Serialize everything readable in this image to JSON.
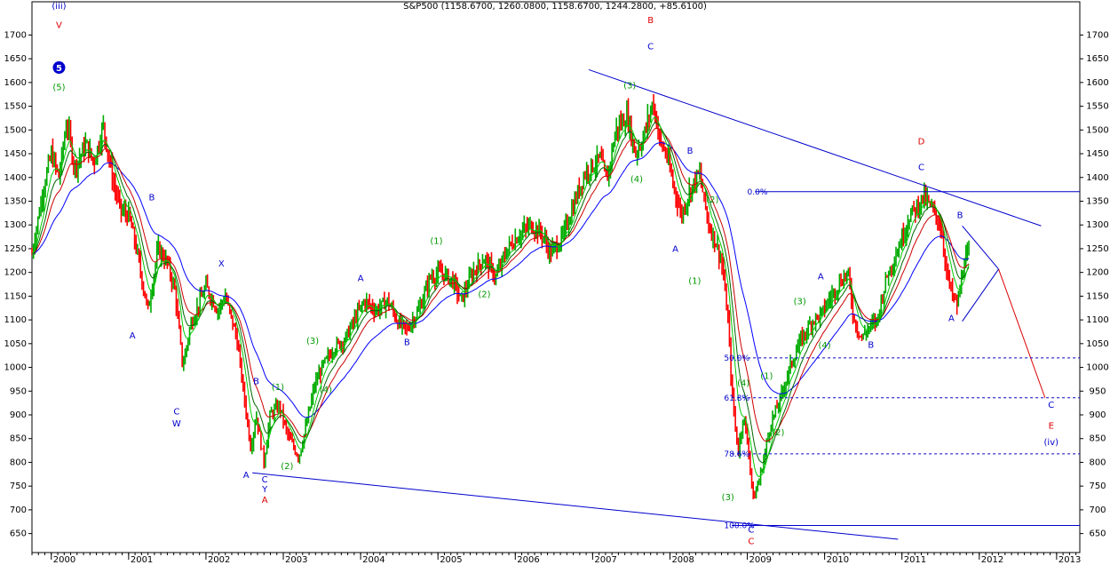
{
  "chart_data": {
    "type": "candlestick",
    "title": "S&P500 (1158.6700, 1260.0800, 1158.6700, 1244.2800, +85.6100)",
    "ylim": [
      610,
      1770
    ],
    "xlim": [
      1999.75,
      2013.3
    ],
    "y_ticks": [
      650,
      700,
      750,
      800,
      850,
      900,
      950,
      1000,
      1050,
      1100,
      1150,
      1200,
      1250,
      1300,
      1350,
      1400,
      1450,
      1500,
      1550,
      1600,
      1650,
      1700
    ],
    "x_ticks": [
      {
        "x": 2000,
        "label": "2000"
      },
      {
        "x": 2001,
        "label": "2001"
      },
      {
        "x": 2002,
        "label": "2002"
      },
      {
        "x": 2003,
        "label": "2003"
      },
      {
        "x": 2004,
        "label": "2004"
      },
      {
        "x": 2005,
        "label": "2005"
      },
      {
        "x": 2006,
        "label": "2006"
      },
      {
        "x": 2007,
        "label": "2007"
      },
      {
        "x": 2008,
        "label": "2008"
      },
      {
        "x": 2009,
        "label": "2009"
      },
      {
        "x": 2010,
        "label": "2010"
      },
      {
        "x": 2011,
        "label": "2011"
      },
      {
        "x": 2012,
        "label": "2012"
      },
      {
        "x": 2013,
        "label": "2013"
      }
    ],
    "price_path": [
      [
        1999.75,
        1240
      ],
      [
        1999.9,
        1380
      ],
      [
        2000.0,
        1450
      ],
      [
        2000.1,
        1400
      ],
      [
        2000.2,
        1520
      ],
      [
        2000.3,
        1420
      ],
      [
        2000.45,
        1470
      ],
      [
        2000.55,
        1430
      ],
      [
        2000.67,
        1510
      ],
      [
        2000.8,
        1390
      ],
      [
        2000.9,
        1330
      ],
      [
        2001.0,
        1320
      ],
      [
        2001.1,
        1250
      ],
      [
        2001.2,
        1160
      ],
      [
        2001.25,
        1120
      ],
      [
        2001.38,
        1250
      ],
      [
        2001.5,
        1220
      ],
      [
        2001.6,
        1160
      ],
      [
        2001.7,
        1000
      ],
      [
        2001.8,
        1090
      ],
      [
        2001.95,
        1150
      ],
      [
        2002.0,
        1170
      ],
      [
        2002.15,
        1120
      ],
      [
        2002.25,
        1150
      ],
      [
        2002.4,
        1060
      ],
      [
        2002.5,
        930
      ],
      [
        2002.58,
        830
      ],
      [
        2002.65,
        900
      ],
      [
        2002.75,
        800
      ],
      [
        2002.83,
        900
      ],
      [
        2002.95,
        920
      ],
      [
        2003.05,
        860
      ],
      [
        2003.2,
        810
      ],
      [
        2003.3,
        880
      ],
      [
        2003.4,
        960
      ],
      [
        2003.5,
        1000
      ],
      [
        2003.65,
        1040
      ],
      [
        2003.8,
        1060
      ],
      [
        2003.95,
        1110
      ],
      [
        2004.05,
        1140
      ],
      [
        2004.2,
        1120
      ],
      [
        2004.35,
        1140
      ],
      [
        2004.5,
        1090
      ],
      [
        2004.6,
        1080
      ],
      [
        2004.75,
        1120
      ],
      [
        2004.9,
        1190
      ],
      [
        2005.05,
        1200
      ],
      [
        2005.2,
        1180
      ],
      [
        2005.3,
        1140
      ],
      [
        2005.45,
        1200
      ],
      [
        2005.6,
        1230
      ],
      [
        2005.75,
        1190
      ],
      [
        2005.9,
        1250
      ],
      [
        2006.05,
        1280
      ],
      [
        2006.2,
        1300
      ],
      [
        2006.35,
        1280
      ],
      [
        2006.45,
        1240
      ],
      [
        2006.6,
        1270
      ],
      [
        2006.75,
        1340
      ],
      [
        2006.9,
        1410
      ],
      [
        2007.1,
        1440
      ],
      [
        2007.18,
        1390
      ],
      [
        2007.3,
        1500
      ],
      [
        2007.45,
        1530
      ],
      [
        2007.55,
        1450
      ],
      [
        2007.65,
        1480
      ],
      [
        2007.78,
        1560
      ],
      [
        2007.88,
        1470
      ],
      [
        2007.95,
        1450
      ],
      [
        2008.05,
        1380
      ],
      [
        2008.15,
        1320
      ],
      [
        2008.25,
        1370
      ],
      [
        2008.38,
        1410
      ],
      [
        2008.5,
        1300
      ],
      [
        2008.58,
        1270
      ],
      [
        2008.67,
        1220
      ],
      [
        2008.75,
        1100
      ],
      [
        2008.8,
        950
      ],
      [
        2008.88,
        820
      ],
      [
        2008.95,
        900
      ],
      [
        2009.02,
        820
      ],
      [
        2009.08,
        720
      ],
      [
        2009.18,
        780
      ],
      [
        2009.3,
        880
      ],
      [
        2009.42,
        930
      ],
      [
        2009.55,
        1000
      ],
      [
        2009.7,
        1060
      ],
      [
        2009.85,
        1100
      ],
      [
        2009.95,
        1110
      ],
      [
        2010.05,
        1140
      ],
      [
        2010.2,
        1180
      ],
      [
        2010.3,
        1200
      ],
      [
        2010.38,
        1100
      ],
      [
        2010.48,
        1060
      ],
      [
        2010.55,
        1080
      ],
      [
        2010.68,
        1100
      ],
      [
        2010.8,
        1190
      ],
      [
        2010.95,
        1250
      ],
      [
        2011.1,
        1320
      ],
      [
        2011.2,
        1340
      ],
      [
        2011.28,
        1360
      ],
      [
        2011.4,
        1330
      ],
      [
        2011.5,
        1300
      ],
      [
        2011.58,
        1200
      ],
      [
        2011.65,
        1150
      ],
      [
        2011.72,
        1130
      ],
      [
        2011.8,
        1220
      ],
      [
        2011.88,
        1244
      ]
    ],
    "trendlines": [
      {
        "name": "upper-channel",
        "from": [
          2006.95,
          1627
        ],
        "to": [
          2012.8,
          1298
        ]
      },
      {
        "name": "lower-channel",
        "from": [
          2002.6,
          778
        ],
        "to": [
          2010.95,
          638
        ]
      },
      {
        "name": "triangle-top",
        "from": [
          2011.78,
          1298
        ],
        "to": [
          2012.25,
          1207
        ]
      },
      {
        "name": "triangle-bottom",
        "from": [
          2011.78,
          1097
        ],
        "to": [
          2012.25,
          1207
        ]
      },
      {
        "name": "projection",
        "from": [
          2012.25,
          1207
        ],
        "to": [
          2012.85,
          936
        ]
      }
    ],
    "fib_levels": [
      {
        "label": "0.0%",
        "value": 1370,
        "x_start": 2009.0,
        "style": "solid"
      },
      {
        "label": "50.0%",
        "value": 1020,
        "x_start": 2008.7,
        "style": "dashed"
      },
      {
        "label": "61.8%",
        "value": 936,
        "x_start": 2008.7,
        "style": "dashed"
      },
      {
        "label": "78.6%",
        "value": 818,
        "x_start": 2008.7,
        "style": "dashed"
      },
      {
        "label": "100.0%",
        "value": 667,
        "x_start": 2008.7,
        "style": "solid"
      }
    ],
    "wave_labels": [
      {
        "text": "(iii)",
        "x": 2000.1,
        "y": 1755,
        "color": "#0000cc"
      },
      {
        "text": "V",
        "x": 2000.1,
        "y": 1715,
        "color": "#dd0000"
      },
      {
        "text": "(5)",
        "x": 2000.1,
        "y": 1584,
        "color": "#009900"
      },
      {
        "text": "B",
        "x": 2001.3,
        "y": 1352,
        "color": "#0000cc"
      },
      {
        "text": "A",
        "x": 2001.05,
        "y": 1061,
        "color": "#0000cc"
      },
      {
        "text": "C",
        "x": 2001.62,
        "y": 901,
        "color": "#0000cc"
      },
      {
        "text": "W",
        "x": 2001.62,
        "y": 876,
        "color": "#0000cc"
      },
      {
        "text": "X",
        "x": 2002.2,
        "y": 1212,
        "color": "#0000cc"
      },
      {
        "text": "B",
        "x": 2002.65,
        "y": 965,
        "color": "#0000cc"
      },
      {
        "text": "(1)",
        "x": 2002.93,
        "y": 952,
        "color": "#009900"
      },
      {
        "text": "A",
        "x": 2002.52,
        "y": 767,
        "color": "#0000cc"
      },
      {
        "text": "C",
        "x": 2002.76,
        "y": 758,
        "color": "#0000cc"
      },
      {
        "text": "Y",
        "x": 2002.76,
        "y": 737,
        "color": "#0000cc"
      },
      {
        "text": "A",
        "x": 2002.76,
        "y": 715,
        "color": "#dd0000"
      },
      {
        "text": "(2)",
        "x": 2003.05,
        "y": 786,
        "color": "#009900"
      },
      {
        "text": "(3)",
        "x": 2003.38,
        "y": 1050,
        "color": "#009900"
      },
      {
        "text": "(4)",
        "x": 2003.55,
        "y": 947,
        "color": "#009900"
      },
      {
        "text": "A",
        "x": 2004.0,
        "y": 1182,
        "color": "#0000cc"
      },
      {
        "text": "B",
        "x": 2004.6,
        "y": 1047,
        "color": "#0000cc"
      },
      {
        "text": "(1)",
        "x": 2004.98,
        "y": 1260,
        "color": "#009900"
      },
      {
        "text": "(2)",
        "x": 2005.6,
        "y": 1148,
        "color": "#009900"
      },
      {
        "text": "(3)",
        "x": 2007.48,
        "y": 1588,
        "color": "#009900"
      },
      {
        "text": "(4)",
        "x": 2007.57,
        "y": 1390,
        "color": "#009900"
      },
      {
        "text": "B",
        "x": 2007.75,
        "y": 1725,
        "color": "#dd0000"
      },
      {
        "text": "C",
        "x": 2007.75,
        "y": 1670,
        "color": "#0000cc"
      },
      {
        "text": "B",
        "x": 2008.26,
        "y": 1450,
        "color": "#0000cc"
      },
      {
        "text": "A",
        "x": 2008.07,
        "y": 1243,
        "color": "#0000cc"
      },
      {
        "text": "(2)",
        "x": 2008.55,
        "y": 1347,
        "color": "#009900"
      },
      {
        "text": "(1)",
        "x": 2008.32,
        "y": 1176,
        "color": "#009900"
      },
      {
        "text": "(4)",
        "x": 2008.95,
        "y": 961,
        "color": "#009900"
      },
      {
        "text": "(3)",
        "x": 2008.75,
        "y": 720,
        "color": "#009900"
      },
      {
        "text": "C",
        "x": 2009.05,
        "y": 652,
        "color": "#0000cc"
      },
      {
        "text": "C",
        "x": 2009.05,
        "y": 628,
        "color": "#dd0000"
      },
      {
        "text": "(1)",
        "x": 2009.25,
        "y": 976,
        "color": "#009900"
      },
      {
        "text": "(2)",
        "x": 2009.4,
        "y": 857,
        "color": "#009900"
      },
      {
        "text": "(3)",
        "x": 2009.68,
        "y": 1133,
        "color": "#009900"
      },
      {
        "text": "(4)",
        "x": 2010.0,
        "y": 1040,
        "color": "#009900"
      },
      {
        "text": "A",
        "x": 2009.95,
        "y": 1185,
        "color": "#0000cc"
      },
      {
        "text": "B",
        "x": 2010.6,
        "y": 1041,
        "color": "#0000cc"
      },
      {
        "text": "D",
        "x": 2011.25,
        "y": 1470,
        "color": "#dd0000"
      },
      {
        "text": "C",
        "x": 2011.25,
        "y": 1415,
        "color": "#0000cc"
      },
      {
        "text": "B",
        "x": 2011.75,
        "y": 1314,
        "color": "#0000cc"
      },
      {
        "text": "A",
        "x": 2011.64,
        "y": 1097,
        "color": "#0000cc"
      },
      {
        "text": "C",
        "x": 2012.93,
        "y": 915,
        "color": "#0000cc"
      },
      {
        "text": "E",
        "x": 2012.93,
        "y": 871,
        "color": "#dd0000"
      },
      {
        "text": "(iv)",
        "x": 2012.93,
        "y": 836,
        "color": "#0000cc"
      }
    ],
    "circle_marker": {
      "text": "5",
      "x": 2000.1,
      "y": 1624,
      "color": "#0000cc"
    },
    "moving_averages": [
      {
        "color": "#0000ff",
        "smooth": 0.09
      },
      {
        "color": "#cc0000",
        "smooth": 0.18
      },
      {
        "color": "#006600",
        "smooth": 0.28
      },
      {
        "color": "#00cc00",
        "smooth": 0.45
      }
    ],
    "colors": {
      "up": "#00aa00",
      "down": "#ff0000",
      "axis": "#000000"
    },
    "grid": false
  }
}
